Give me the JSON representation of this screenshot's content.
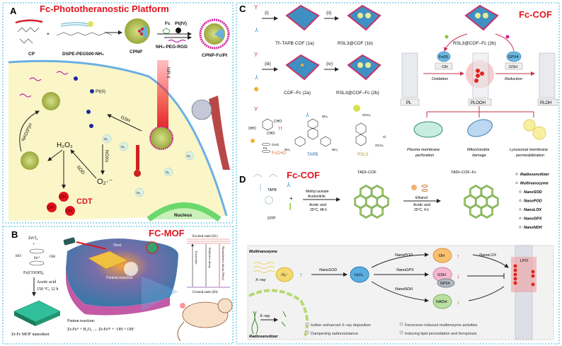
{
  "panel_a": {
    "label": "A",
    "title": "Fc-Phototheranostic Platform",
    "cp": "CP",
    "plus": "+",
    "dspe": "DSPE-PEG500-NH₂",
    "cpnp": "CPNP",
    "fc": "Fc",
    "pt4": "Pt(IV)",
    "peg_rgd": "NH₂-PEG-RGD",
    "cpnp_fc_pt": "CPNP-Fc/Pt",
    "nir": "NIR-II",
    "pt2": "Pt(II)",
    "gsh": "GSH",
    "nadph": "NAD(P)H",
    "h2o2": "H₂O₂",
    "sod": "SOD",
    "nox": "NOXs",
    "superoxide": "O₂·⁻",
    "o2": "O₂",
    "oh": "OH",
    "cdt": "CDT",
    "nucleus": "Nucleus"
  },
  "panel_b": {
    "label": "B",
    "title": "FC-MOF",
    "zrcl4": "ZrCl₄",
    "plus": "+",
    "fe": "Feᴵᴵ",
    "ho": "HO",
    "oh": "OH",
    "fc_cooh": "Fc(COOH)₂",
    "cond1": "Acetic acid",
    "cond2": "150 °C, 12 h",
    "nanosheet": "Zr-Fc MOF nanosheet",
    "heat": "Heat",
    "fenton_in": "Fenton reaction",
    "fenton_label": "Fenton reaction:",
    "equation": "Zr-Feᴵᴵ + H₂O₂ → Zr-Feᴵᴵᴵ + ·OH + OH⁻",
    "excited": "Excited state (S1)",
    "ground": "Ground state (S0)",
    "excitation": "Excitation",
    "radiative": "Radiative decay",
    "nonradiative": "Nonradiative decay (Heat)"
  },
  "panel_c": {
    "label": "C",
    "title": "Fc-COF",
    "step_i": "(i)",
    "step_ii": "(ii)",
    "step_iii": "(iii)",
    "step_iv": "(iv)",
    "cof_1a": "Tf–TAPB COF (1a)",
    "cof_1b": "RSL3@COF (1b)",
    "cof_2a": "COF–Fc (2a)",
    "cof_2b": "RSL3@COF–Fc (2b)",
    "cof_2b_top": "RSL3@COF–Fc (2b)",
    "tf": "Tf",
    "tapb": "TAPB",
    "rsl3": "RSL3",
    "fccho": "FcCHO",
    "cho": "CHO",
    "ohc": "OHC",
    "nh2": "NH₂",
    "och3": "OCH₃",
    "cl": "Cl",
    "fe": "Fe",
    "fe2": "Fe(II)",
    "oh_radical": "· OH",
    "oxidation": "Oxidation",
    "gpx4": "GPX4",
    "gsh": "GSH",
    "reduction": "Reduction",
    "pl": "PL",
    "plooh": "PLOOH",
    "ploh": "PLOH",
    "outcome1_a": "Plasma membrane",
    "outcome1_b": "perforation",
    "outcome2_a": "Mitochondria",
    "outcome2_b": "damage",
    "outcome3_a": "Lysosomal membrane",
    "outcome3_b": "permeabilization"
  },
  "panel_d": {
    "label": "D",
    "title": "Fc-COF",
    "tapb": "TAPB",
    "ditp": "DITP",
    "cond1_a": "Methyl acetate",
    "cond1_b": "Acetonitrile",
    "cond1_c": "Acetic acid",
    "cond1_d": "25°C, 48 h",
    "tadi_cof": "TADI–COF",
    "cond2_a": "Ethanol",
    "cond2_b": "Acetic acid",
    "cond2_c": "25°C, 4 h",
    "tadi_cof_fc": "TADI–COF–Fc",
    "features": [
      "Radiosensitizer",
      "Multinanozyme",
      "NanoSOD",
      "NanoPOD",
      "NanoLOX",
      "NanoGPX",
      "NanoNDH"
    ],
    "multinanozyme": "Multinanozyme",
    "xray": "X–ray",
    "superoxide": "·O₂⁻",
    "nanosod": "NanoSOD",
    "h2o2": "H₂O₂",
    "nanopod": "NanoPOD",
    "nanogpx": "NanoGPX",
    "nanondh": "NanoNDH",
    "nanolox": "NanoLOX",
    "oh": "·OH",
    "gsh": "GSH",
    "gpx4": "GPX4",
    "nadh": "NADH",
    "lpo": "LPO",
    "radiosensitizer": "Radiosensitizer",
    "bullets": [
      "Iodine–enhanced X–ray deposition",
      "Dampening radioresistance",
      "Ferrocene–induced multienzyme activities",
      "Inducing lipid peroxidation and ferroptosis"
    ]
  },
  "colors": {
    "title_red": "#e0141e",
    "border": "#3bb4d8",
    "cell": "#fbf6c8",
    "membrane": "#6ab0e4",
    "cof_blue": "#3f8fc2",
    "cof_pink": "#c8336a"
  }
}
